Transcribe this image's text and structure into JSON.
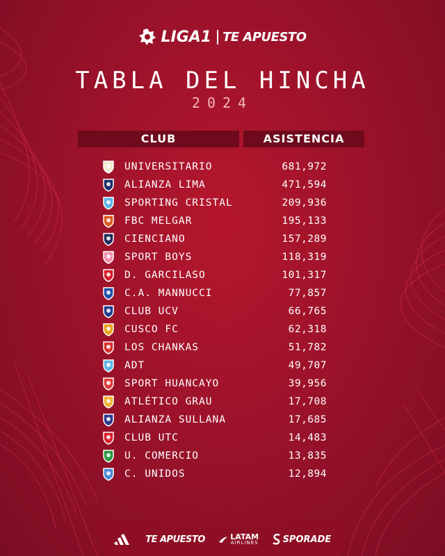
{
  "header": {
    "league_logo_text": "LIGA1",
    "sponsor_text": "TE APUESTO"
  },
  "title": "TABLA DEL HINCHA",
  "year": "2024",
  "table": {
    "columns": [
      "CLUB",
      "ASISTENCIA"
    ],
    "rows": [
      {
        "club": "UNIVERSITARIO",
        "attendance": "681,972",
        "crest": "universitario-crest-icon",
        "color": "#f3e9d0"
      },
      {
        "club": "ALIANZA LIMA",
        "attendance": "471,594",
        "crest": "alianza-lima-crest-icon",
        "color": "#1c2f6b"
      },
      {
        "club": "SPORTING CRISTAL",
        "attendance": "209,936",
        "crest": "sporting-cristal-crest-icon",
        "color": "#5fb6e6"
      },
      {
        "club": "FBC MELGAR",
        "attendance": "195,133",
        "crest": "melgar-crest-icon",
        "color": "#e05a1e"
      },
      {
        "club": "CIENCIANO",
        "attendance": "157,289",
        "crest": "cienciano-crest-icon",
        "color": "#1f2c5c"
      },
      {
        "club": "SPORT BOYS",
        "attendance": "118,319",
        "crest": "sport-boys-crest-icon",
        "color": "#f48fb1"
      },
      {
        "club": "D. GARCILASO",
        "attendance": "101,317",
        "crest": "garcilaso-crest-icon",
        "color": "#d91d2a"
      },
      {
        "club": "C.A. MANNUCCI",
        "attendance": "77,857",
        "crest": "mannucci-crest-icon",
        "color": "#2150a8"
      },
      {
        "club": "CLUB UCV",
        "attendance": "66,765",
        "crest": "ucv-crest-icon",
        "color": "#1f3d8f"
      },
      {
        "club": "CUSCO FC",
        "attendance": "62,318",
        "crest": "cusco-fc-crest-icon",
        "color": "#e8a21b"
      },
      {
        "club": "LOS CHANKAS",
        "attendance": "51,782",
        "crest": "los-chankas-crest-icon",
        "color": "#d9302f"
      },
      {
        "club": "ADT",
        "attendance": "49,707",
        "crest": "adt-crest-icon",
        "color": "#5fb6e6"
      },
      {
        "club": "SPORT HUANCAYO",
        "attendance": "39,956",
        "crest": "sport-huancayo-crest-icon",
        "color": "#e23a3a"
      },
      {
        "club": "ATLÉTICO GRAU",
        "attendance": "17,708",
        "crest": "atletico-grau-crest-icon",
        "color": "#f2b233"
      },
      {
        "club": "ALIANZA SULLANA",
        "attendance": "17,685",
        "crest": "alianza-sullana-crest-icon",
        "color": "#2d3a8c"
      },
      {
        "club": "CLUB UTC",
        "attendance": "14,483",
        "crest": "utc-crest-icon",
        "color": "#d91d2a"
      },
      {
        "club": "U. COMERCIO",
        "attendance": "13,835",
        "crest": "u-comercio-crest-icon",
        "color": "#2a9b3f"
      },
      {
        "club": "C. UNIDOS",
        "attendance": "12,894",
        "crest": "comerciantes-unidos-crest-icon",
        "color": "#4a8bd6"
      }
    ]
  },
  "footer": {
    "sponsors": [
      {
        "name": "adidas-logo-icon"
      },
      {
        "text": "TE APUESTO"
      },
      {
        "text": "LATAM",
        "subtext": "AIRLINES"
      },
      {
        "text": "SPORADE"
      }
    ]
  },
  "colors": {
    "background": "#96112a",
    "header_bar": "#6e0a1c",
    "year": "#f4b6bf"
  }
}
